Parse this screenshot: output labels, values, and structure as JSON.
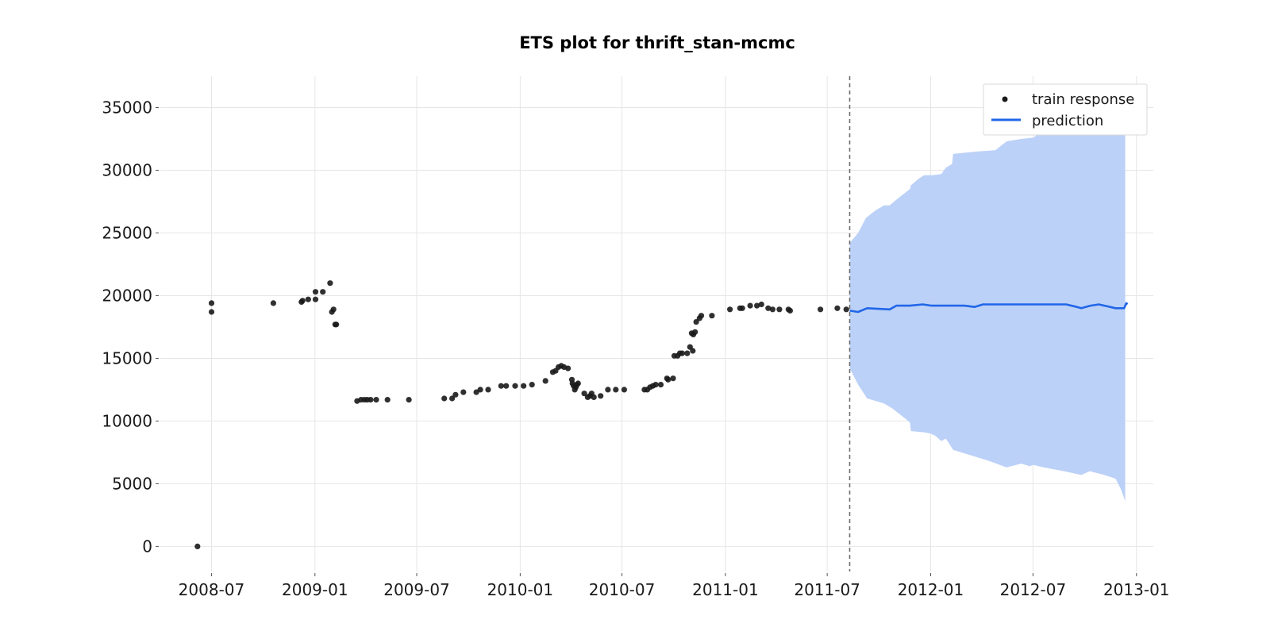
{
  "colors": {
    "train_points": "#1a1a1a",
    "prediction_line": "#2066e8",
    "interval_fill": "#bcd1f8",
    "cutoff_line": "#6e6e6e"
  },
  "chart_data": {
    "type": "line",
    "title": "ETS plot for thrift_stan-mcmc",
    "xlabel": "",
    "ylabel": "",
    "x_axis": "date",
    "xlim": [
      "2008-04-01",
      "2013-01-31"
    ],
    "ylim": [
      -2000,
      37500
    ],
    "x_ticks": [
      "2008-07-01",
      "2009-01-01",
      "2009-07-01",
      "2010-01-01",
      "2010-07-01",
      "2011-01-01",
      "2011-07-01",
      "2012-01-01",
      "2012-07-01",
      "2013-01-01"
    ],
    "x_tick_labels": [
      "2008-07",
      "2009-01",
      "2009-07",
      "2010-01",
      "2010-07",
      "2011-01",
      "2011-07",
      "2012-01",
      "2012-07",
      "2013-01"
    ],
    "y_ticks": [
      0,
      5000,
      10000,
      15000,
      20000,
      25000,
      30000,
      35000
    ],
    "y_tick_labels": [
      "0",
      "5000",
      "10000",
      "15000",
      "20000",
      "25000",
      "30000",
      "35000"
    ],
    "grid": true,
    "legend": {
      "position": "top-right",
      "entries": [
        {
          "label": "train response",
          "marker": "dot"
        },
        {
          "label": "prediction",
          "marker": "line"
        }
      ]
    },
    "cutoff_date": "2011-08-10",
    "series": [
      {
        "name": "train response",
        "kind": "scatter",
        "points": [
          [
            "2008-06-06",
            0
          ],
          [
            "2008-07-01",
            18700
          ],
          [
            "2008-07-01",
            19400
          ],
          [
            "2008-10-19",
            19400
          ],
          [
            "2008-12-08",
            19500
          ],
          [
            "2008-12-10",
            19600
          ],
          [
            "2008-12-20",
            19700
          ],
          [
            "2009-01-02",
            20300
          ],
          [
            "2009-01-02",
            19700
          ],
          [
            "2009-01-15",
            20300
          ],
          [
            "2009-01-28",
            21000
          ],
          [
            "2009-01-31",
            18700
          ],
          [
            "2009-02-03",
            18900
          ],
          [
            "2009-02-06",
            17700
          ],
          [
            "2009-02-08",
            17700
          ],
          [
            "2009-03-17",
            11600
          ],
          [
            "2009-03-24",
            11700
          ],
          [
            "2009-03-30",
            11700
          ],
          [
            "2009-04-04",
            11700
          ],
          [
            "2009-04-10",
            11700
          ],
          [
            "2009-04-20",
            11700
          ],
          [
            "2009-05-10",
            11700
          ],
          [
            "2009-06-17",
            11700
          ],
          [
            "2009-08-19",
            11800
          ],
          [
            "2009-09-02",
            11800
          ],
          [
            "2009-09-08",
            12100
          ],
          [
            "2009-09-22",
            12300
          ],
          [
            "2009-10-15",
            12300
          ],
          [
            "2009-10-22",
            12500
          ],
          [
            "2009-11-05",
            12500
          ],
          [
            "2009-11-28",
            12800
          ],
          [
            "2009-12-07",
            12800
          ],
          [
            "2009-12-23",
            12800
          ],
          [
            "2010-01-07",
            12800
          ],
          [
            "2010-01-22",
            12900
          ],
          [
            "2010-02-15",
            13200
          ],
          [
            "2010-02-28",
            13900
          ],
          [
            "2010-03-05",
            14000
          ],
          [
            "2010-03-10",
            14300
          ],
          [
            "2010-03-15",
            14400
          ],
          [
            "2010-03-20",
            14300
          ],
          [
            "2010-03-27",
            14200
          ],
          [
            "2010-04-03",
            13300
          ],
          [
            "2010-04-04",
            13000
          ],
          [
            "2010-04-06",
            12800
          ],
          [
            "2010-04-08",
            12500
          ],
          [
            "2010-04-10",
            12700
          ],
          [
            "2010-04-12",
            12900
          ],
          [
            "2010-04-14",
            13000
          ],
          [
            "2010-04-25",
            12200
          ],
          [
            "2010-05-01",
            11900
          ],
          [
            "2010-05-05",
            12000
          ],
          [
            "2010-05-08",
            12200
          ],
          [
            "2010-05-12",
            11900
          ],
          [
            "2010-05-24",
            12000
          ],
          [
            "2010-06-06",
            12500
          ],
          [
            "2010-06-20",
            12500
          ],
          [
            "2010-07-05",
            12500
          ],
          [
            "2010-08-10",
            12500
          ],
          [
            "2010-08-15",
            12500
          ],
          [
            "2010-08-20",
            12700
          ],
          [
            "2010-08-25",
            12800
          ],
          [
            "2010-08-30",
            12900
          ],
          [
            "2010-09-08",
            12900
          ],
          [
            "2010-09-19",
            13400
          ],
          [
            "2010-09-21",
            13300
          ],
          [
            "2010-09-30",
            13400
          ],
          [
            "2010-10-02",
            15200
          ],
          [
            "2010-10-08",
            15200
          ],
          [
            "2010-10-12",
            15400
          ],
          [
            "2010-10-16",
            15400
          ],
          [
            "2010-10-25",
            15400
          ],
          [
            "2010-10-30",
            15900
          ],
          [
            "2010-11-04",
            15600
          ],
          [
            "2010-11-02",
            17000
          ],
          [
            "2010-11-05",
            16900
          ],
          [
            "2010-11-08",
            17100
          ],
          [
            "2010-11-10",
            17900
          ],
          [
            "2010-11-16",
            18200
          ],
          [
            "2010-11-19",
            18400
          ],
          [
            "2010-12-08",
            18400
          ],
          [
            "2011-01-09",
            18900
          ],
          [
            "2011-01-27",
            19000
          ],
          [
            "2011-01-31",
            19000
          ],
          [
            "2011-02-14",
            19200
          ],
          [
            "2011-02-26",
            19200
          ],
          [
            "2011-03-06",
            19300
          ],
          [
            "2011-03-18",
            19000
          ],
          [
            "2011-03-26",
            18900
          ],
          [
            "2011-04-07",
            18900
          ],
          [
            "2011-04-23",
            18900
          ],
          [
            "2011-04-26",
            18800
          ],
          [
            "2011-06-19",
            18900
          ],
          [
            "2011-07-19",
            19000
          ],
          [
            "2011-08-04",
            18900
          ]
        ]
      },
      {
        "name": "prediction",
        "kind": "line",
        "points": [
          [
            "2011-08-10",
            18800
          ],
          [
            "2011-08-25",
            18700
          ],
          [
            "2011-09-10",
            19000
          ],
          [
            "2011-10-20",
            18900
          ],
          [
            "2011-11-01",
            19200
          ],
          [
            "2011-11-25",
            19200
          ],
          [
            "2011-12-18",
            19300
          ],
          [
            "2012-01-03",
            19200
          ],
          [
            "2012-02-07",
            19200
          ],
          [
            "2012-03-01",
            19200
          ],
          [
            "2012-03-19",
            19100
          ],
          [
            "2012-04-03",
            19300
          ],
          [
            "2012-05-15",
            19300
          ],
          [
            "2012-07-02",
            19300
          ],
          [
            "2012-08-04",
            19300
          ],
          [
            "2012-08-29",
            19300
          ],
          [
            "2012-09-17",
            19100
          ],
          [
            "2012-09-25",
            19000
          ],
          [
            "2012-10-11",
            19200
          ],
          [
            "2012-10-26",
            19300
          ],
          [
            "2012-11-25",
            19000
          ],
          [
            "2012-12-10",
            19000
          ],
          [
            "2012-12-14",
            19400
          ],
          [
            "2012-12-16",
            19300
          ]
        ]
      },
      {
        "name": "prediction interval",
        "kind": "area",
        "upper": [
          [
            "2011-08-10",
            24200
          ],
          [
            "2011-08-25",
            25000
          ],
          [
            "2011-09-08",
            26200
          ],
          [
            "2011-09-25",
            26800
          ],
          [
            "2011-10-10",
            27200
          ],
          [
            "2011-10-20",
            27200
          ],
          [
            "2011-11-05",
            27800
          ],
          [
            "2011-11-25",
            28500
          ],
          [
            "2011-11-27",
            28800
          ],
          [
            "2011-12-10",
            29300
          ],
          [
            "2011-12-20",
            29600
          ],
          [
            "2012-01-05",
            29600
          ],
          [
            "2012-01-20",
            29700
          ],
          [
            "2012-01-28",
            30200
          ],
          [
            "2012-02-08",
            30500
          ],
          [
            "2012-02-10",
            31300
          ],
          [
            "2012-03-25",
            31500
          ],
          [
            "2012-04-25",
            31600
          ],
          [
            "2012-05-15",
            32300
          ],
          [
            "2012-06-10",
            32500
          ],
          [
            "2012-07-02",
            32600
          ],
          [
            "2012-07-15",
            33100
          ],
          [
            "2012-08-10",
            33500
          ],
          [
            "2012-09-25",
            33700
          ],
          [
            "2012-10-26",
            33900
          ],
          [
            "2012-11-25",
            34200
          ],
          [
            "2012-12-05",
            34800
          ],
          [
            "2012-12-12",
            35300
          ]
        ],
        "lower": [
          [
            "2011-08-10",
            14200
          ],
          [
            "2011-08-25",
            12900
          ],
          [
            "2011-09-10",
            11800
          ],
          [
            "2011-10-10",
            11400
          ],
          [
            "2011-10-25",
            11000
          ],
          [
            "2011-11-25",
            9900
          ],
          [
            "2011-11-27",
            9200
          ],
          [
            "2011-12-20",
            9100
          ],
          [
            "2012-01-01",
            9000
          ],
          [
            "2012-01-10",
            8800
          ],
          [
            "2012-01-20",
            8400
          ],
          [
            "2012-01-28",
            8600
          ],
          [
            "2012-02-10",
            7700
          ],
          [
            "2012-04-15",
            6800
          ],
          [
            "2012-05-15",
            6300
          ],
          [
            "2012-06-10",
            6600
          ],
          [
            "2012-06-25",
            6400
          ],
          [
            "2012-07-02",
            6500
          ],
          [
            "2012-07-20",
            6300
          ],
          [
            "2012-08-25",
            6000
          ],
          [
            "2012-09-25",
            5700
          ],
          [
            "2012-10-10",
            6000
          ],
          [
            "2012-11-05",
            5700
          ],
          [
            "2012-11-25",
            5400
          ],
          [
            "2012-12-05",
            4500
          ],
          [
            "2012-12-12",
            3600
          ]
        ]
      }
    ]
  }
}
